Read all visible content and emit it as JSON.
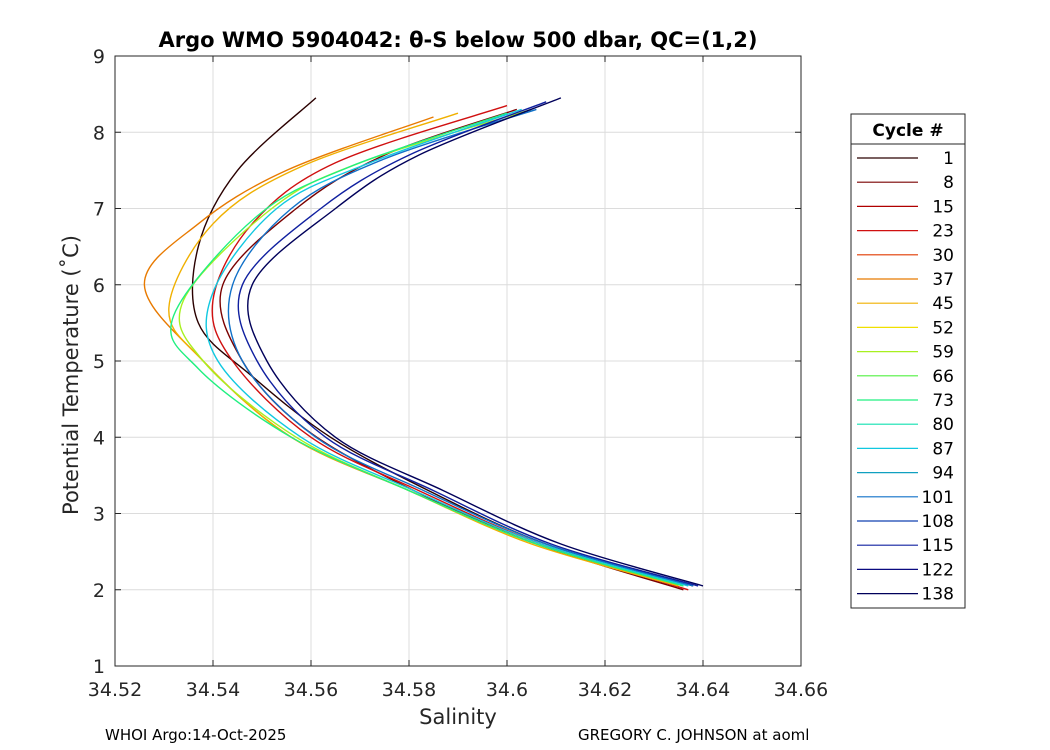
{
  "chart_data": {
    "type": "line",
    "title": "Argo WMO 5904042: θ-S below 500 dbar,  QC=(1,2)",
    "xlabel": "Salinity",
    "ylabel": "Potential Temperature (˚C)",
    "xlim": [
      34.52,
      34.66
    ],
    "ylim": [
      1,
      9
    ],
    "xticks": [
      "34.52",
      "34.54",
      "34.56",
      "34.58",
      "34.6",
      "34.62",
      "34.64",
      "34.66"
    ],
    "xtick_values": [
      34.52,
      34.54,
      34.56,
      34.58,
      34.6,
      34.62,
      34.64,
      34.66
    ],
    "yticks": [
      "1",
      "2",
      "3",
      "4",
      "5",
      "6",
      "7",
      "8",
      "9"
    ],
    "ytick_values": [
      1,
      2,
      3,
      4,
      5,
      6,
      7,
      8,
      9
    ],
    "grid": true,
    "legend": {
      "title": "Cycle #",
      "placement": "right",
      "entries": [
        {
          "label": "1",
          "color": "#2a0000"
        },
        {
          "label": "8",
          "color": "#7a0000"
        },
        {
          "label": "15",
          "color": "#b00000"
        },
        {
          "label": "23",
          "color": "#d01010"
        },
        {
          "label": "30",
          "color": "#e03a00"
        },
        {
          "label": "37",
          "color": "#e87a00"
        },
        {
          "label": "45",
          "color": "#f0b000"
        },
        {
          "label": "52",
          "color": "#f0e000"
        },
        {
          "label": "59",
          "color": "#a8f020"
        },
        {
          "label": "66",
          "color": "#50f040"
        },
        {
          "label": "73",
          "color": "#20f080"
        },
        {
          "label": "80",
          "color": "#10e0b0"
        },
        {
          "label": "87",
          "color": "#10c8e0"
        },
        {
          "label": "94",
          "color": "#10a0c0"
        },
        {
          "label": "101",
          "color": "#1070c8"
        },
        {
          "label": "108",
          "color": "#1040b0"
        },
        {
          "label": "115",
          "color": "#1020a0"
        },
        {
          "label": "122",
          "color": "#0a0a80"
        },
        {
          "label": "138",
          "color": "#00005a"
        }
      ]
    },
    "series": [
      {
        "name": "1",
        "s": [
          34.561,
          34.545,
          34.537,
          34.537,
          34.548,
          34.564,
          34.584,
          34.608,
          34.638
        ],
        "t": [
          8.45,
          7.5,
          6.5,
          5.5,
          4.8,
          4.0,
          3.3,
          2.6,
          2.05
        ]
      },
      {
        "name": "8",
        "s": [
          34.602,
          34.575,
          34.557,
          34.542,
          34.546,
          34.559,
          34.581,
          34.606,
          34.636
        ],
        "t": [
          8.3,
          7.7,
          7.0,
          6.0,
          5.0,
          4.1,
          3.3,
          2.6,
          2.0
        ]
      },
      {
        "name": "23",
        "s": [
          34.6,
          34.565,
          34.548,
          34.54,
          34.544,
          34.56,
          34.582,
          34.607,
          34.637
        ],
        "t": [
          8.35,
          7.6,
          6.8,
          5.8,
          5.0,
          4.0,
          3.3,
          2.6,
          2.0
        ]
      },
      {
        "name": "37",
        "s": [
          34.585,
          34.555,
          34.537,
          34.526,
          34.538,
          34.556,
          34.58,
          34.606,
          34.636
        ],
        "t": [
          8.2,
          7.5,
          6.8,
          6.0,
          5.0,
          4.0,
          3.3,
          2.6,
          2.05
        ]
      },
      {
        "name": "45",
        "s": [
          34.59,
          34.558,
          34.54,
          34.531,
          34.538,
          34.556,
          34.58,
          34.605,
          34.635
        ],
        "t": [
          8.25,
          7.55,
          6.8,
          5.7,
          5.0,
          4.0,
          3.3,
          2.6,
          2.05
        ]
      },
      {
        "name": "59",
        "s": [
          34.605,
          34.57,
          34.552,
          34.534,
          34.538,
          34.557,
          34.58,
          34.606,
          34.636
        ],
        "t": [
          8.3,
          7.6,
          7.0,
          5.8,
          5.0,
          4.0,
          3.3,
          2.6,
          2.05
        ]
      },
      {
        "name": "73",
        "s": [
          34.6,
          34.568,
          34.549,
          34.532,
          34.537,
          34.556,
          34.58,
          34.606,
          34.636
        ],
        "t": [
          8.25,
          7.55,
          6.9,
          5.6,
          4.9,
          4.0,
          3.3,
          2.6,
          2.05
        ]
      },
      {
        "name": "87",
        "s": [
          34.603,
          34.572,
          34.553,
          34.54,
          34.541,
          34.558,
          34.581,
          34.607,
          34.637
        ],
        "t": [
          8.3,
          7.6,
          7.0,
          5.9,
          5.0,
          4.0,
          3.3,
          2.6,
          2.05
        ]
      },
      {
        "name": "101",
        "s": [
          34.606,
          34.575,
          34.556,
          34.544,
          34.546,
          34.561,
          34.583,
          34.608,
          34.638
        ],
        "t": [
          8.3,
          7.65,
          7.0,
          6.0,
          5.0,
          4.0,
          3.3,
          2.6,
          2.05
        ]
      },
      {
        "name": "115",
        "s": [
          34.608,
          34.58,
          34.562,
          34.546,
          34.549,
          34.563,
          34.585,
          34.609,
          34.639
        ],
        "t": [
          8.4,
          7.7,
          7.0,
          6.0,
          5.0,
          4.0,
          3.3,
          2.6,
          2.05
        ]
      },
      {
        "name": "138",
        "s": [
          34.611,
          34.582,
          34.565,
          34.548,
          34.551,
          34.565,
          34.587,
          34.611,
          34.64
        ],
        "t": [
          8.45,
          7.7,
          7.0,
          6.0,
          5.0,
          4.0,
          3.3,
          2.6,
          2.05
        ]
      }
    ]
  },
  "footer": {
    "left": "WHOI Argo:14-Oct-2025",
    "right": "GREGORY C. JOHNSON at aoml"
  }
}
